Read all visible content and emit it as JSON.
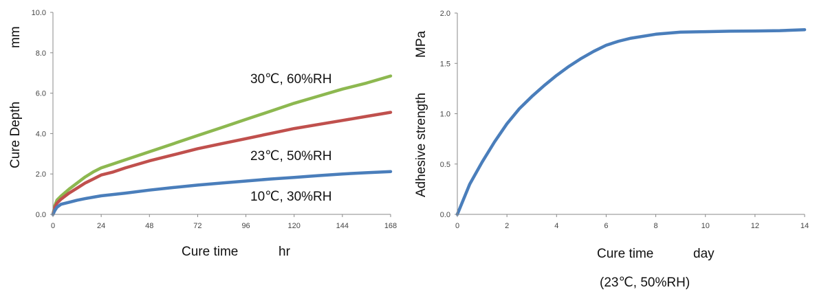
{
  "chart_data": [
    {
      "type": "line",
      "title": "",
      "xlabel": "Cure time",
      "xunit": "hr",
      "ylabel": "Cure Depth",
      "yunit": "mm",
      "xlim": [
        0,
        168
      ],
      "ylim": [
        0,
        10
      ],
      "xticks": [
        "0",
        "24",
        "48",
        "72",
        "96",
        "120",
        "144",
        "168"
      ],
      "yticks": [
        "0.0",
        "2.0",
        "4.0",
        "6.0",
        "8.0",
        "10.0"
      ],
      "grid": false,
      "series": [
        {
          "name": "30℃, 60%RH",
          "color": "#8db850",
          "x": [
            0,
            1,
            2,
            4,
            8,
            12,
            16,
            20,
            24,
            30,
            36,
            48,
            60,
            72,
            84,
            96,
            108,
            120,
            132,
            144,
            156,
            168
          ],
          "y": [
            0,
            0.45,
            0.7,
            0.9,
            1.25,
            1.55,
            1.85,
            2.1,
            2.3,
            2.5,
            2.7,
            3.1,
            3.5,
            3.9,
            4.3,
            4.7,
            5.1,
            5.5,
            5.85,
            6.2,
            6.5,
            6.85
          ]
        },
        {
          "name": "23℃, 50%RH",
          "color": "#c0504d",
          "x": [
            0,
            1,
            2,
            4,
            8,
            12,
            16,
            20,
            24,
            30,
            36,
            48,
            60,
            72,
            84,
            96,
            108,
            120,
            132,
            144,
            156,
            168
          ],
          "y": [
            0,
            0.35,
            0.55,
            0.75,
            1.05,
            1.3,
            1.55,
            1.75,
            1.95,
            2.1,
            2.3,
            2.65,
            2.95,
            3.25,
            3.5,
            3.75,
            4.0,
            4.25,
            4.45,
            4.65,
            4.85,
            5.05
          ]
        },
        {
          "name": "10℃, 30%RH",
          "color": "#4a7ebb",
          "x": [
            0,
            1,
            2,
            4,
            8,
            12,
            16,
            20,
            24,
            36,
            48,
            60,
            72,
            84,
            96,
            108,
            120,
            132,
            144,
            156,
            168
          ],
          "y": [
            0,
            0.2,
            0.35,
            0.5,
            0.6,
            0.7,
            0.78,
            0.85,
            0.92,
            1.05,
            1.2,
            1.33,
            1.45,
            1.55,
            1.65,
            1.75,
            1.83,
            1.92,
            2.0,
            2.06,
            2.12
          ]
        }
      ]
    },
    {
      "type": "line",
      "title": "",
      "xlabel": "Cure time",
      "xunit": "day",
      "ylabel": "Adhesive strength",
      "yunit": "MPa",
      "note": "(23℃, 50%RH)",
      "xlim": [
        0,
        14
      ],
      "ylim": [
        0,
        2
      ],
      "xticks": [
        "0",
        "2",
        "4",
        "6",
        "8",
        "10",
        "12",
        "14"
      ],
      "yticks": [
        "0.0",
        "0.5",
        "1.0",
        "1.5",
        "2.0"
      ],
      "grid": false,
      "series": [
        {
          "name": "",
          "color": "#4a7ebb",
          "x": [
            0,
            0.5,
            1,
            1.5,
            2,
            2.5,
            3,
            3.5,
            4,
            4.5,
            5,
            5.5,
            6,
            6.5,
            7,
            8,
            9,
            10,
            11,
            12,
            13,
            14
          ],
          "y": [
            0,
            0.3,
            0.52,
            0.72,
            0.9,
            1.05,
            1.17,
            1.28,
            1.38,
            1.47,
            1.55,
            1.62,
            1.68,
            1.72,
            1.75,
            1.79,
            1.81,
            1.815,
            1.82,
            1.822,
            1.825,
            1.835
          ]
        }
      ]
    }
  ]
}
